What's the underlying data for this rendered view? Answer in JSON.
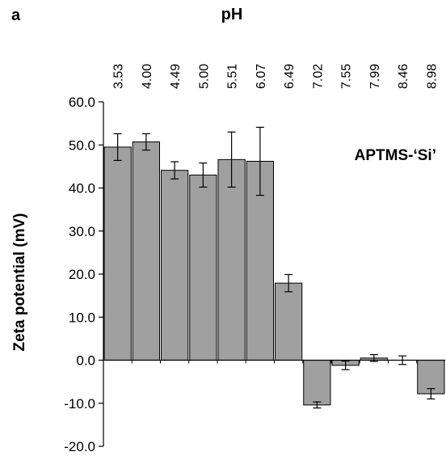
{
  "panel_label": "a",
  "chart_data": {
    "type": "bar",
    "xlabel": "pH",
    "ylabel": "Zeta potential (mV)",
    "annotation": "APTMS-‘Si’",
    "categories": [
      "3.53",
      "4.00",
      "4.49",
      "5.00",
      "5.51",
      "6.07",
      "6.49",
      "7.02",
      "7.55",
      "7.99",
      "8.46",
      "8.98"
    ],
    "values": [
      49.5,
      50.7,
      44.1,
      43.0,
      46.6,
      46.2,
      17.9,
      -10.4,
      -1.2,
      0.5,
      0.0,
      -7.8
    ],
    "errors": [
      3.1,
      1.9,
      2.0,
      2.8,
      6.4,
      7.9,
      2.0,
      0.7,
      1.0,
      0.8,
      1.0,
      1.2
    ],
    "yticks": [
      "60.0",
      "50.0",
      "40.0",
      "30.0",
      "20.0",
      "10.0",
      "0.0",
      "-10.0",
      "-20.0"
    ],
    "ylim": [
      -20,
      60
    ],
    "bar_color": "#a0a0a0",
    "bar_stroke": "#000000",
    "grid": false
  }
}
